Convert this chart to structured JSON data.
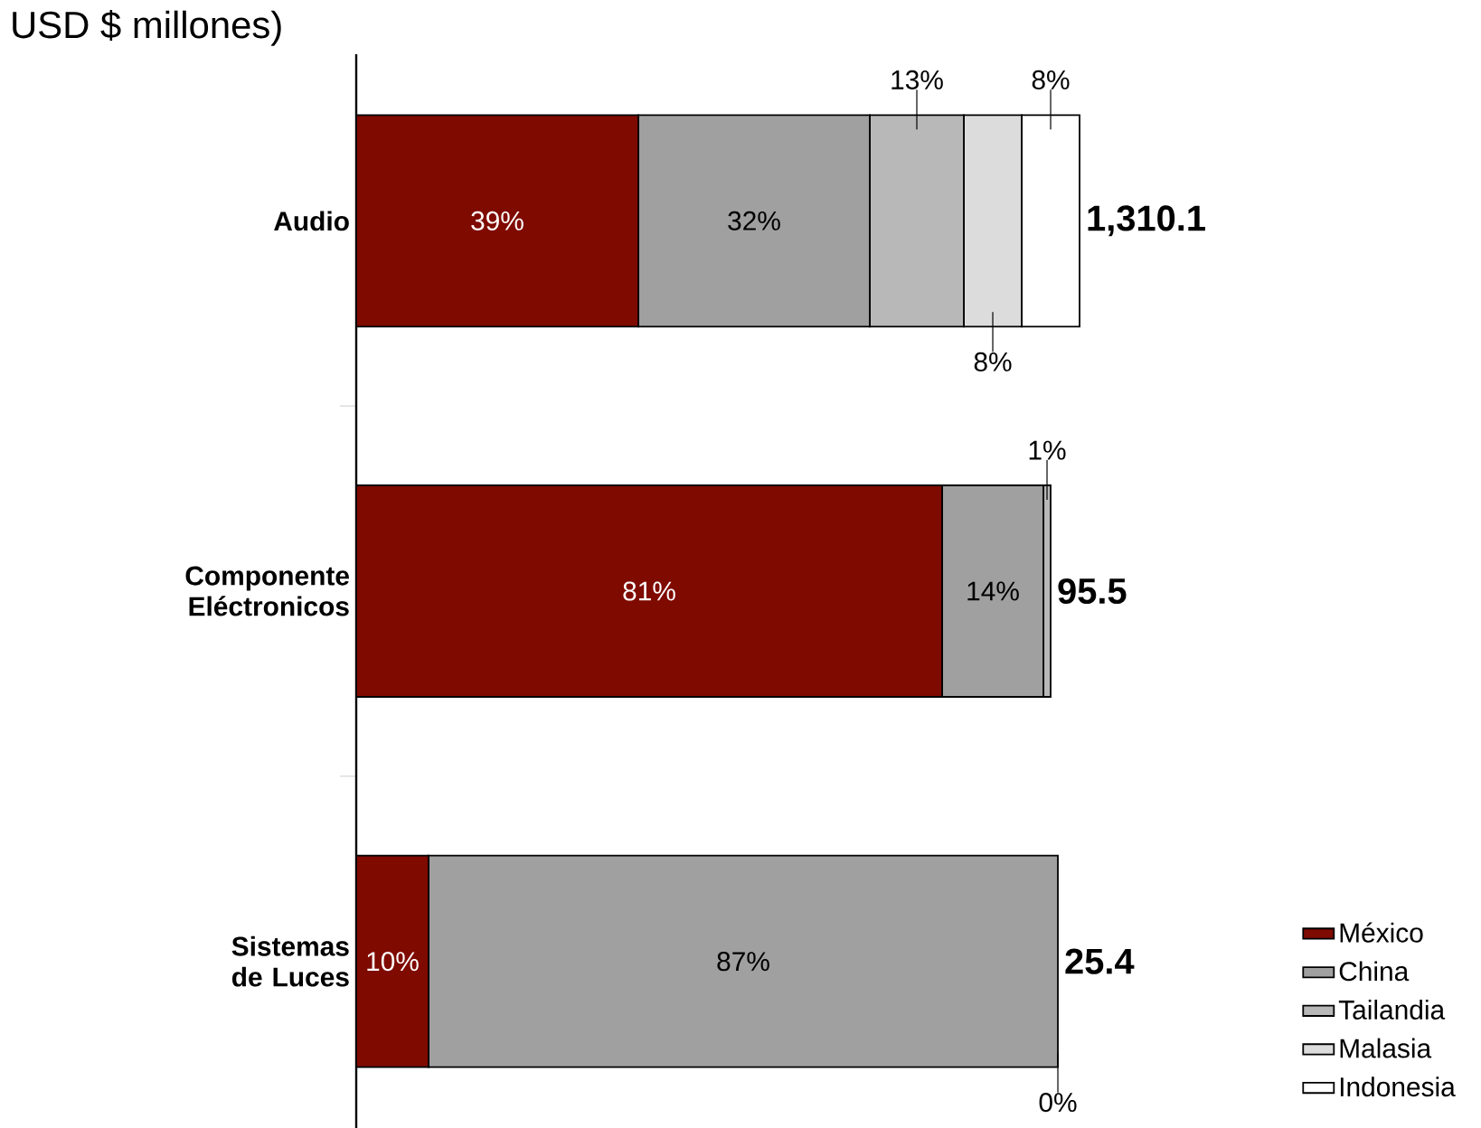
{
  "chart_data": {
    "type": "bar",
    "orientation": "horizontal",
    "stacked": true,
    "title": "USD $ millones)",
    "categories": [
      "Audio",
      "Componente Eléctronicos",
      "Sistemas de Luces"
    ],
    "series": [
      {
        "name": "México",
        "color": "#7f0a00",
        "values": [
          39,
          81,
          10
        ],
        "value_labels": [
          "39%",
          "81%",
          "10%"
        ]
      },
      {
        "name": "China",
        "color": "#a0a0a0",
        "values": [
          32,
          14,
          87
        ],
        "value_labels": [
          "32%",
          "14%",
          "87%"
        ]
      },
      {
        "name": "Tailandia",
        "color": "#b8b8b8",
        "values": [
          13,
          1,
          0
        ],
        "value_labels": [
          "13%",
          "1%",
          "0%"
        ]
      },
      {
        "name": "Malasia",
        "color": "#dcdcdc",
        "values": [
          8,
          null,
          null
        ],
        "value_labels": [
          "8%",
          null,
          null
        ]
      },
      {
        "name": "Indonesia",
        "color": "#ffffff",
        "values": [
          8,
          null,
          null
        ],
        "value_labels": [
          "8%",
          null,
          null
        ]
      }
    ],
    "annotations": [
      "1,310.1",
      "95.5",
      "25.4"
    ],
    "legend": "bottom right"
  }
}
